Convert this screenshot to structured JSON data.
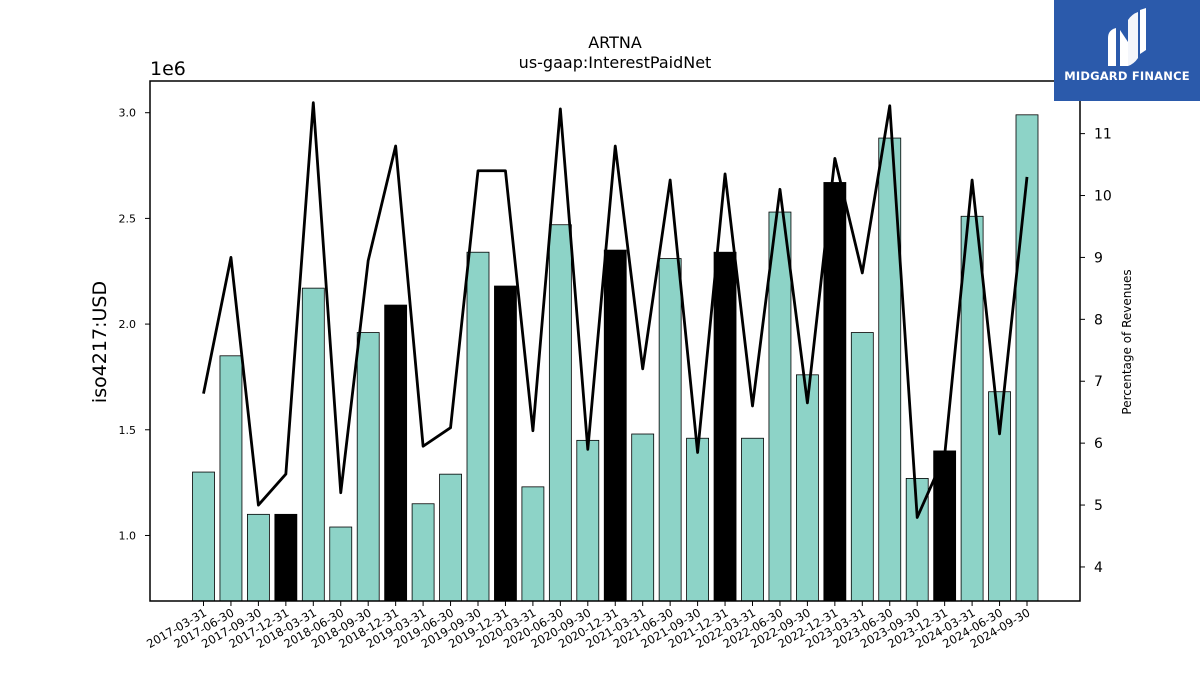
{
  "chart_data": {
    "type": "bar",
    "title": "ARTNA",
    "subtitle": "us-gaap:InterestPaidNet",
    "ylabel": "iso4217:USD",
    "y_multiplier_label": "1e6",
    "y2label": "Percentage of Revenues",
    "ylim": [
      0.69,
      3.15
    ],
    "y2lim": [
      3.45,
      11.85
    ],
    "yticks": [
      "1.0",
      "1.5",
      "2.0",
      "2.5",
      "3.0"
    ],
    "yticks_values": [
      1.0,
      1.5,
      2.0,
      2.5,
      3.0
    ],
    "y2ticks": [
      "4",
      "5",
      "6",
      "7",
      "8",
      "9",
      "10",
      "11"
    ],
    "y2ticks_values": [
      4,
      5,
      6,
      7,
      8,
      9,
      10,
      11
    ],
    "categories": [
      "2017-03-31",
      "2017-06-30",
      "2017-09-30",
      "2017-12-31",
      "2018-03-31",
      "2018-06-30",
      "2018-09-30",
      "2018-12-31",
      "2019-03-31",
      "2019-06-30",
      "2019-09-30",
      "2019-12-31",
      "2020-03-31",
      "2020-06-30",
      "2020-09-30",
      "2020-12-31",
      "2021-03-31",
      "2021-06-30",
      "2021-09-30",
      "2021-12-31",
      "2022-03-31",
      "2022-06-30",
      "2022-09-30",
      "2022-12-31",
      "2023-03-31",
      "2023-06-30",
      "2023-09-30",
      "2023-12-31",
      "2024-03-31",
      "2024-06-30",
      "2024-09-30"
    ],
    "series": [
      {
        "type": "bar",
        "values": [
          1.3,
          1.85,
          1.1,
          1.1,
          2.17,
          1.04,
          1.96,
          2.09,
          1.15,
          1.29,
          2.34,
          2.18,
          1.23,
          2.47,
          1.45,
          2.35,
          1.48,
          2.31,
          1.46,
          2.34,
          1.46,
          2.53,
          1.76,
          2.67,
          1.96,
          2.88,
          1.27,
          1.4,
          2.51,
          1.68,
          2.99
        ],
        "highlight": [
          false,
          false,
          false,
          true,
          false,
          false,
          false,
          true,
          false,
          false,
          false,
          true,
          false,
          false,
          false,
          true,
          false,
          false,
          false,
          true,
          false,
          false,
          false,
          true,
          false,
          false,
          false,
          true,
          false,
          false,
          false
        ]
      },
      {
        "type": "line",
        "axis": "secondary",
        "values": [
          6.8,
          9.0,
          5.0,
          5.5,
          11.5,
          5.2,
          8.95,
          10.8,
          5.95,
          6.25,
          10.4,
          10.4,
          6.2,
          11.4,
          5.9,
          10.8,
          7.2,
          10.25,
          5.85,
          10.35,
          6.6,
          10.1,
          6.65,
          10.6,
          8.75,
          11.45,
          4.8,
          5.8,
          10.25,
          6.15,
          10.3
        ]
      }
    ],
    "colors": {
      "bar": "#8dd3c7",
      "bar_highlight": "#000000",
      "line": "#000000"
    },
    "grid": false
  },
  "logo": {
    "text": "MIDGARD FINANCE",
    "background": "#2b5aab"
  }
}
